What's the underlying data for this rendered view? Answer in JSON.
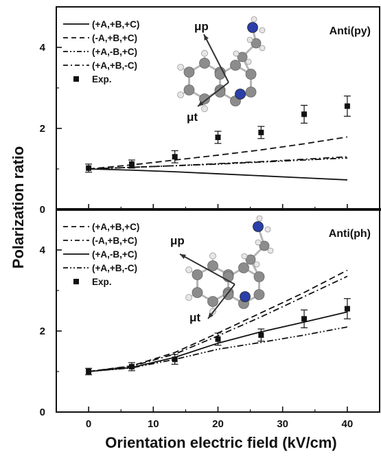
{
  "figure": {
    "xlabel": "Orientation electric field (kV/cm)",
    "ylabel": "Polarization ratio"
  },
  "colors": {
    "atom_carbon": "#8c8c8c",
    "atom_nitrogen": "#2a3fa8",
    "atom_hydrogen": "#e6e6e6",
    "ink": "#111111"
  },
  "chart_data": [
    {
      "type": "line",
      "panel_label": "Anti(py)",
      "x": [
        0,
        6.67,
        13.33,
        20,
        26.67,
        33.33,
        40
      ],
      "xlim": [
        -5,
        45
      ],
      "ylim": [
        0,
        5
      ],
      "x_ticks": [
        0,
        10,
        20,
        30,
        40
      ],
      "y_ticks": [
        0,
        2,
        4
      ],
      "legend_position": "top-left",
      "dipole_labels": {
        "p": "μp",
        "t": "μt"
      },
      "series": [
        {
          "name": "(+A,+B,+C)",
          "style": "solid",
          "values": [
            1.0,
            0.97,
            0.93,
            0.88,
            0.83,
            0.78,
            0.73
          ]
        },
        {
          "name": "(-A,+B,+C)",
          "style": "dashed",
          "values": [
            1.0,
            1.1,
            1.22,
            1.34,
            1.47,
            1.62,
            1.79
          ]
        },
        {
          "name": "(+A,-B,+C)",
          "style": "dash-dot-dot",
          "values": [
            1.0,
            1.04,
            1.08,
            1.12,
            1.17,
            1.22,
            1.27
          ]
        },
        {
          "name": "(+A,+B,-C)",
          "style": "dash-dot",
          "values": [
            1.0,
            1.04,
            1.08,
            1.13,
            1.18,
            1.24,
            1.3
          ]
        }
      ],
      "experiment": {
        "name": "Exp.",
        "x": [
          0,
          6.67,
          13.33,
          20,
          26.67,
          33.33,
          40
        ],
        "y": [
          1.02,
          1.12,
          1.3,
          1.78,
          1.9,
          2.35,
          2.55
        ],
        "err": [
          0.1,
          0.1,
          0.15,
          0.15,
          0.15,
          0.22,
          0.25
        ]
      }
    },
    {
      "type": "line",
      "panel_label": "Anti(ph)",
      "x": [
        0,
        6.67,
        13.33,
        20,
        26.67,
        33.33,
        40
      ],
      "xlim": [
        -5,
        45
      ],
      "ylim": [
        0,
        5
      ],
      "x_ticks": [
        0,
        10,
        20,
        30,
        40
      ],
      "y_ticks": [
        0,
        2,
        4
      ],
      "legend_position": "top-left",
      "dipole_labels": {
        "p": "μp",
        "t": "μt"
      },
      "series": [
        {
          "name": "(+A,+B,+C)",
          "style": "dashed",
          "values": [
            1.0,
            1.14,
            1.47,
            1.95,
            2.45,
            2.95,
            3.5
          ]
        },
        {
          "name": "(-A,+B,+C)",
          "style": "dash-dot",
          "values": [
            1.0,
            1.13,
            1.43,
            1.88,
            2.35,
            2.85,
            3.35
          ]
        },
        {
          "name": "(+A,-B,+C)",
          "style": "solid",
          "values": [
            1.0,
            1.1,
            1.35,
            1.7,
            1.98,
            2.22,
            2.47
          ]
        },
        {
          "name": "(+A,+B,-C)",
          "style": "dash-dot-dot",
          "values": [
            1.0,
            1.09,
            1.3,
            1.55,
            1.72,
            1.9,
            2.1
          ]
        }
      ],
      "experiment": {
        "name": "Exp.",
        "x": [
          0,
          6.67,
          13.33,
          20,
          26.67,
          33.33,
          40
        ],
        "y": [
          1.0,
          1.12,
          1.3,
          1.8,
          1.9,
          2.3,
          2.55
        ],
        "err": [
          0.08,
          0.1,
          0.12,
          0.15,
          0.15,
          0.22,
          0.25
        ]
      }
    }
  ]
}
